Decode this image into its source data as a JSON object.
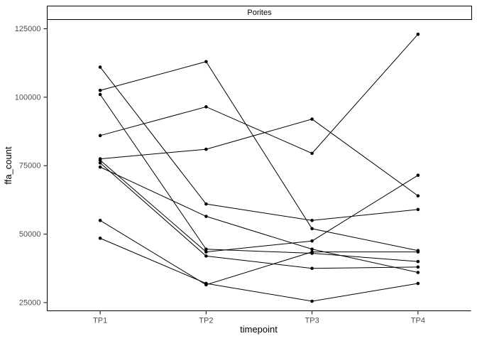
{
  "chart_data": {
    "type": "line",
    "title": "Porites",
    "xlabel": "timepoint",
    "ylabel": "ffa_count",
    "categories": [
      "TP1",
      "TP2",
      "TP3",
      "TP4"
    ],
    "yticks": [
      25000,
      50000,
      75000,
      100000,
      125000
    ],
    "ylim": [
      22000,
      128500
    ],
    "grid": false,
    "legend": "none",
    "colors": {
      "line": "#000000",
      "point": "#000000",
      "axis": "#000000",
      "tick_label": "#4d4d4d",
      "strip_border": "#000000",
      "strip_bg": "#ffffff"
    },
    "series": [
      {
        "values": [
          111000,
          61000,
          55000,
          59000
        ]
      },
      {
        "values": [
          102500,
          113000,
          52000,
          44000
        ]
      },
      {
        "values": [
          101000,
          44500,
          43000,
          40000
        ]
      },
      {
        "values": [
          86000,
          96500,
          79500,
          123000
        ]
      },
      {
        "values": [
          77500,
          81000,
          92000,
          64000
        ]
      },
      {
        "values": [
          77000,
          43500,
          47500,
          71500
        ]
      },
      {
        "values": [
          76000,
          42000,
          37500,
          38000
        ]
      },
      {
        "values": [
          74500,
          56500,
          44500,
          36000
        ]
      },
      {
        "values": [
          55000,
          31500,
          43500,
          43500
        ]
      },
      {
        "values": [
          48500,
          32000,
          25500,
          32000
        ]
      }
    ]
  }
}
